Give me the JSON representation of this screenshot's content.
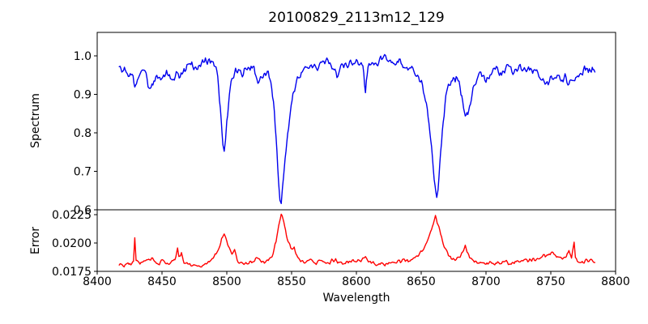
{
  "figure": {
    "background_color": "#ffffff",
    "text_color": "#000000"
  },
  "chart_data": {
    "type": "line",
    "title": "20100829_2113m12_129",
    "xlabel": "Wavelength",
    "xlim": [
      8400,
      8800
    ],
    "xticks": [
      8400,
      8450,
      8500,
      8550,
      8600,
      8650,
      8700,
      8750,
      8800
    ],
    "grid": false,
    "legend": null,
    "subplots": [
      {
        "name": "spectrum",
        "ylabel": "Spectrum",
        "color": "#0000ee",
        "ylim": [
          0.6,
          1.061
        ],
        "yticks": [
          0.6,
          0.7,
          0.8,
          0.9,
          1.0
        ],
        "ytick_labels": [
          "0.6",
          "0.7",
          "0.8",
          "0.9",
          "1.0"
        ],
        "noise_amplitude": 0.011,
        "scale_noise_with_depth": true,
        "features": {
          "continuum_level": 0.97,
          "absorption_lines": [
            {
              "wavelength": 8498,
              "min_flux": 0.75
            },
            {
              "wavelength": 8542,
              "min_flux": 0.62
            },
            {
              "wavelength": 8662,
              "min_flux": 0.63
            },
            {
              "wavelength": 8686,
              "min_flux": 0.84
            }
          ],
          "data_range": [
            8417,
            8784
          ]
        },
        "anchors": [
          [
            8417,
            0.975
          ],
          [
            8419,
            0.955
          ],
          [
            8421,
            0.975
          ],
          [
            8424,
            0.94
          ],
          [
            8427,
            0.95
          ],
          [
            8429,
            0.92
          ],
          [
            8431,
            0.945
          ],
          [
            8434,
            0.97
          ],
          [
            8437,
            0.96
          ],
          [
            8440,
            0.915
          ],
          [
            8443,
            0.925
          ],
          [
            8446,
            0.95
          ],
          [
            8449,
            0.935
          ],
          [
            8452,
            0.945
          ],
          [
            8455,
            0.955
          ],
          [
            8458,
            0.93
          ],
          [
            8461,
            0.95
          ],
          [
            8464,
            0.945
          ],
          [
            8467,
            0.955
          ],
          [
            8470,
            0.97
          ],
          [
            8473,
            0.98
          ],
          [
            8476,
            0.965
          ],
          [
            8479,
            0.975
          ],
          [
            8482,
            0.99
          ],
          [
            8485,
            0.98
          ],
          [
            8488,
            0.99
          ],
          [
            8491,
            0.975
          ],
          [
            8493,
            0.94
          ],
          [
            8495,
            0.865
          ],
          [
            8497,
            0.765
          ],
          [
            8498,
            0.748
          ],
          [
            8499,
            0.775
          ],
          [
            8500,
            0.83
          ],
          [
            8502,
            0.9
          ],
          [
            8504,
            0.94
          ],
          [
            8506,
            0.955
          ],
          [
            8509,
            0.965
          ],
          [
            8512,
            0.955
          ],
          [
            8515,
            0.975
          ],
          [
            8518,
            0.975
          ],
          [
            8521,
            0.97
          ],
          [
            8524,
            0.935
          ],
          [
            8526,
            0.945
          ],
          [
            8528,
            0.955
          ],
          [
            8530,
            0.95
          ],
          [
            8532,
            0.96
          ],
          [
            8534,
            0.935
          ],
          [
            8536,
            0.88
          ],
          [
            8538,
            0.79
          ],
          [
            8540,
            0.67
          ],
          [
            8541,
            0.625
          ],
          [
            8542,
            0.618
          ],
          [
            8543,
            0.66
          ],
          [
            8545,
            0.73
          ],
          [
            8547,
            0.8
          ],
          [
            8549,
            0.855
          ],
          [
            8551,
            0.9
          ],
          [
            8553,
            0.925
          ],
          [
            8556,
            0.945
          ],
          [
            8559,
            0.96
          ],
          [
            8562,
            0.965
          ],
          [
            8566,
            0.975
          ],
          [
            8570,
            0.97
          ],
          [
            8574,
            0.98
          ],
          [
            8578,
            0.99
          ],
          [
            8582,
            0.975
          ],
          [
            8585,
            0.95
          ],
          [
            8588,
            0.97
          ],
          [
            8591,
            0.98
          ],
          [
            8594,
            0.975
          ],
          [
            8597,
            0.98
          ],
          [
            8600,
            0.985
          ],
          [
            8603,
            0.98
          ],
          [
            8605,
            0.97
          ],
          [
            8607,
            0.9
          ],
          [
            8609,
            0.975
          ],
          [
            8612,
            0.985
          ],
          [
            8615,
            0.975
          ],
          [
            8618,
            0.99
          ],
          [
            8621,
            1.0
          ],
          [
            8624,
            0.99
          ],
          [
            8627,
            0.985
          ],
          [
            8630,
            0.98
          ],
          [
            8633,
            0.99
          ],
          [
            8636,
            0.975
          ],
          [
            8639,
            0.97
          ],
          [
            8642,
            0.975
          ],
          [
            8645,
            0.96
          ],
          [
            8648,
            0.945
          ],
          [
            8651,
            0.925
          ],
          [
            8654,
            0.88
          ],
          [
            8656,
            0.83
          ],
          [
            8658,
            0.76
          ],
          [
            8660,
            0.68
          ],
          [
            8662,
            0.632
          ],
          [
            8663,
            0.65
          ],
          [
            8665,
            0.75
          ],
          [
            8667,
            0.83
          ],
          [
            8669,
            0.89
          ],
          [
            8671,
            0.925
          ],
          [
            8674,
            0.94
          ],
          [
            8677,
            0.945
          ],
          [
            8680,
            0.92
          ],
          [
            8682,
            0.88
          ],
          [
            8684,
            0.85
          ],
          [
            8686,
            0.845
          ],
          [
            8688,
            0.875
          ],
          [
            8690,
            0.915
          ],
          [
            8693,
            0.94
          ],
          [
            8696,
            0.95
          ],
          [
            8700,
            0.94
          ],
          [
            8704,
            0.955
          ],
          [
            8708,
            0.965
          ],
          [
            8712,
            0.955
          ],
          [
            8716,
            0.97
          ],
          [
            8720,
            0.96
          ],
          [
            8724,
            0.965
          ],
          [
            8728,
            0.97
          ],
          [
            8732,
            0.96
          ],
          [
            8736,
            0.965
          ],
          [
            8740,
            0.95
          ],
          [
            8744,
            0.935
          ],
          [
            8748,
            0.93
          ],
          [
            8752,
            0.945
          ],
          [
            8755,
            0.955
          ],
          [
            8758,
            0.93
          ],
          [
            8761,
            0.95
          ],
          [
            8764,
            0.925
          ],
          [
            8767,
            0.935
          ],
          [
            8770,
            0.945
          ],
          [
            8773,
            0.955
          ],
          [
            8776,
            0.965
          ],
          [
            8779,
            0.96
          ],
          [
            8782,
            0.965
          ],
          [
            8784,
            0.955
          ]
        ]
      },
      {
        "name": "error",
        "ylabel": "Error",
        "color": "#ff0000",
        "ylim": [
          0.0175,
          0.02293
        ],
        "yticks": [
          0.0175,
          0.02,
          0.0225
        ],
        "ytick_labels": [
          "0.0175",
          "0.0200",
          "0.0225"
        ],
        "noise_amplitude": 0.00015,
        "scale_noise_with_depth": false,
        "features": {
          "baseline_level": 0.0182,
          "peaks": [
            {
              "wavelength": 8429,
              "value": 0.0204
            },
            {
              "wavelength": 8498,
              "value": 0.0208
            },
            {
              "wavelength": 8542,
              "value": 0.0226
            },
            {
              "wavelength": 8661,
              "value": 0.0223
            },
            {
              "wavelength": 8684,
              "value": 0.0198
            },
            {
              "wavelength": 8768,
              "value": 0.0201
            }
          ],
          "data_range": [
            8417,
            8784
          ]
        },
        "anchors": [
          [
            8417,
            0.0182
          ],
          [
            8420,
            0.018
          ],
          [
            8423,
            0.0182
          ],
          [
            8426,
            0.0181
          ],
          [
            8428,
            0.0183
          ],
          [
            8429,
            0.0204
          ],
          [
            8430,
            0.0184
          ],
          [
            8433,
            0.0181
          ],
          [
            8436,
            0.0185
          ],
          [
            8439,
            0.0184
          ],
          [
            8442,
            0.0186
          ],
          [
            8445,
            0.0183
          ],
          [
            8448,
            0.0182
          ],
          [
            8451,
            0.0185
          ],
          [
            8454,
            0.0181
          ],
          [
            8457,
            0.0184
          ],
          [
            8460,
            0.0186
          ],
          [
            8462,
            0.0195
          ],
          [
            8463,
            0.0187
          ],
          [
            8465,
            0.0192
          ],
          [
            8467,
            0.0183
          ],
          [
            8470,
            0.0181
          ],
          [
            8473,
            0.018
          ],
          [
            8476,
            0.0182
          ],
          [
            8479,
            0.0179
          ],
          [
            8482,
            0.0181
          ],
          [
            8485,
            0.0183
          ],
          [
            8488,
            0.0185
          ],
          [
            8491,
            0.0189
          ],
          [
            8494,
            0.0196
          ],
          [
            8496,
            0.0203
          ],
          [
            8498,
            0.0208
          ],
          [
            8500,
            0.0201
          ],
          [
            8502,
            0.0194
          ],
          [
            8504,
            0.0189
          ],
          [
            8506,
            0.0193
          ],
          [
            8508,
            0.0185
          ],
          [
            8511,
            0.0182
          ],
          [
            8514,
            0.0181
          ],
          [
            8517,
            0.0183
          ],
          [
            8520,
            0.0184
          ],
          [
            8523,
            0.0186
          ],
          [
            8526,
            0.0184
          ],
          [
            8529,
            0.0183
          ],
          [
            8532,
            0.0185
          ],
          [
            8535,
            0.0189
          ],
          [
            8538,
            0.0201
          ],
          [
            8540,
            0.0215
          ],
          [
            8542,
            0.0226
          ],
          [
            8544,
            0.0218
          ],
          [
            8546,
            0.0207
          ],
          [
            8548,
            0.02
          ],
          [
            8550,
            0.0194
          ],
          [
            8552,
            0.0196
          ],
          [
            8554,
            0.0189
          ],
          [
            8557,
            0.0185
          ],
          [
            8560,
            0.0183
          ],
          [
            8563,
            0.0185
          ],
          [
            8566,
            0.0184
          ],
          [
            8569,
            0.0182
          ],
          [
            8572,
            0.0184
          ],
          [
            8575,
            0.0183
          ],
          [
            8578,
            0.0182
          ],
          [
            8581,
            0.0184
          ],
          [
            8584,
            0.0185
          ],
          [
            8587,
            0.0183
          ],
          [
            8590,
            0.0182
          ],
          [
            8593,
            0.0184
          ],
          [
            8596,
            0.0183
          ],
          [
            8599,
            0.0185
          ],
          [
            8602,
            0.0184
          ],
          [
            8605,
            0.0186
          ],
          [
            8607,
            0.0188
          ],
          [
            8610,
            0.0184
          ],
          [
            8613,
            0.0182
          ],
          [
            8616,
            0.0181
          ],
          [
            8619,
            0.0182
          ],
          [
            8622,
            0.0181
          ],
          [
            8625,
            0.0183
          ],
          [
            8628,
            0.0182
          ],
          [
            8631,
            0.0184
          ],
          [
            8634,
            0.0183
          ],
          [
            8637,
            0.0185
          ],
          [
            8640,
            0.0184
          ],
          [
            8643,
            0.0186
          ],
          [
            8646,
            0.0188
          ],
          [
            8649,
            0.0191
          ],
          [
            8652,
            0.0195
          ],
          [
            8655,
            0.0202
          ],
          [
            8658,
            0.0212
          ],
          [
            8660,
            0.022
          ],
          [
            8661,
            0.0223
          ],
          [
            8663,
            0.0217
          ],
          [
            8665,
            0.0208
          ],
          [
            8667,
            0.02
          ],
          [
            8669,
            0.0194
          ],
          [
            8671,
            0.0189
          ],
          [
            8674,
            0.0186
          ],
          [
            8677,
            0.0185
          ],
          [
            8680,
            0.0189
          ],
          [
            8682,
            0.0193
          ],
          [
            8684,
            0.0198
          ],
          [
            8686,
            0.0192
          ],
          [
            8688,
            0.0187
          ],
          [
            8691,
            0.0184
          ],
          [
            8694,
            0.0182
          ],
          [
            8697,
            0.0183
          ],
          [
            8700,
            0.0181
          ],
          [
            8703,
            0.0182
          ],
          [
            8706,
            0.0181
          ],
          [
            8709,
            0.0183
          ],
          [
            8712,
            0.0182
          ],
          [
            8715,
            0.0184
          ],
          [
            8718,
            0.0182
          ],
          [
            8721,
            0.0183
          ],
          [
            8724,
            0.0184
          ],
          [
            8727,
            0.0183
          ],
          [
            8730,
            0.0185
          ],
          [
            8733,
            0.0184
          ],
          [
            8736,
            0.0186
          ],
          [
            8739,
            0.0185
          ],
          [
            8742,
            0.0187
          ],
          [
            8745,
            0.0189
          ],
          [
            8748,
            0.0188
          ],
          [
            8751,
            0.0192
          ],
          [
            8753,
            0.019
          ],
          [
            8756,
            0.0187
          ],
          [
            8759,
            0.0186
          ],
          [
            8762,
            0.0189
          ],
          [
            8764,
            0.0194
          ],
          [
            8766,
            0.0187
          ],
          [
            8768,
            0.0201
          ],
          [
            8769,
            0.0186
          ],
          [
            8772,
            0.0184
          ],
          [
            8775,
            0.0183
          ],
          [
            8778,
            0.0185
          ],
          [
            8781,
            0.0184
          ],
          [
            8784,
            0.0183
          ]
        ]
      }
    ]
  }
}
